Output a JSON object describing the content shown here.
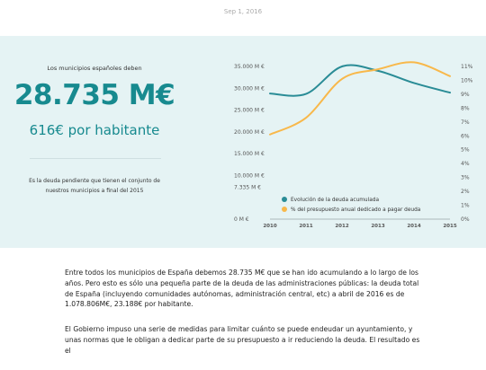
{
  "header": {
    "date": "Sep 1, 2016"
  },
  "stat": {
    "kicker": "Los municipios españoles deben",
    "big_value": "28.735 M€",
    "per_capita": "616€ por habitante",
    "note": "Es la deuda pendiente que tienen el conjunto de nuestros municipios a final del 2015"
  },
  "chart_data": {
    "type": "line",
    "x": [
      2010,
      2011,
      2012,
      2013,
      2014,
      2015
    ],
    "x_ticks": [
      "2010",
      "2011",
      "2012",
      "2013",
      "2014",
      "2015"
    ],
    "y_left_ticks": [
      "0 M €",
      "7.335 M €",
      "10.000 M €",
      "15.000 M €",
      "20.000 M €",
      "25.000 M €",
      "30.000 M €",
      "35.000 M €"
    ],
    "y_left_tick_values": [
      0,
      7335,
      10000,
      15000,
      20000,
      25000,
      30000,
      35000
    ],
    "y_right_ticks": [
      "0%",
      "1%",
      "2%",
      "3%",
      "4%",
      "5%",
      "6%",
      "7%",
      "8%",
      "9%",
      "10%",
      "11%"
    ],
    "ylim_left": [
      0,
      35000
    ],
    "ylim_right": [
      0,
      11
    ],
    "grid": false,
    "legend_position": "bottom-left",
    "series": [
      {
        "name": "Evolución de la deuda acumulada",
        "axis": "left",
        "color": "#2a8c96",
        "values": [
          28800,
          28700,
          35000,
          34000,
          31200,
          29000
        ]
      },
      {
        "name": "% del presupuesto anual dedicado a pagar deuda",
        "axis": "right",
        "color": "#f8b84a",
        "values": [
          6.1,
          7.3,
          10.1,
          10.8,
          11.3,
          10.3
        ]
      }
    ]
  },
  "article": {
    "p1": "Entre todos los municipios de España debemos 28.735 M€ que se han ido acumulando a lo largo de los años. Pero esto es sólo una pequeña parte de la deuda de las administraciones públicas: la deuda total de España (incluyendo comunidades autónomas, administración central, etc) a abril de 2016 es de 1.078.806M€, 23.188€ por habitante.",
    "p2": "El Gobierno impuso una serie de medidas para limitar cuánto se puede endeudar un ayuntamiento, y unas normas que le obligan a dedicar parte de su presupuesto a ir reduciendo la deuda. El resultado es el"
  }
}
